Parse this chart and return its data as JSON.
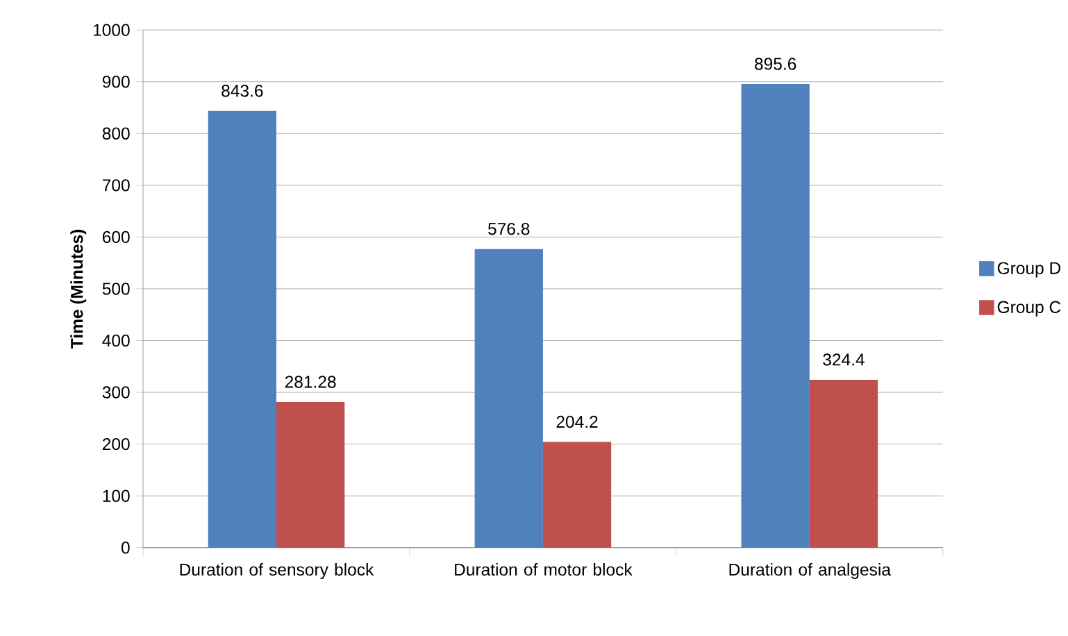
{
  "chart_data": {
    "type": "bar",
    "ylabel": "Time (Minutes)",
    "categories": [
      "Duration of sensory block",
      "Duration of motor block",
      "Duration of analgesia"
    ],
    "series": [
      {
        "name": "Group D",
        "color": "#4f81bd",
        "values": [
          843.6,
          576.8,
          895.6
        ]
      },
      {
        "name": "Group C",
        "color": "#c0504d",
        "values": [
          281.28,
          204.2,
          324.4
        ]
      }
    ],
    "ylim": [
      0,
      1000
    ],
    "yticks": [
      0,
      100,
      200,
      300,
      400,
      500,
      600,
      700,
      800,
      900,
      1000
    ],
    "grid": "y",
    "legend": "right",
    "data_labels": true
  }
}
